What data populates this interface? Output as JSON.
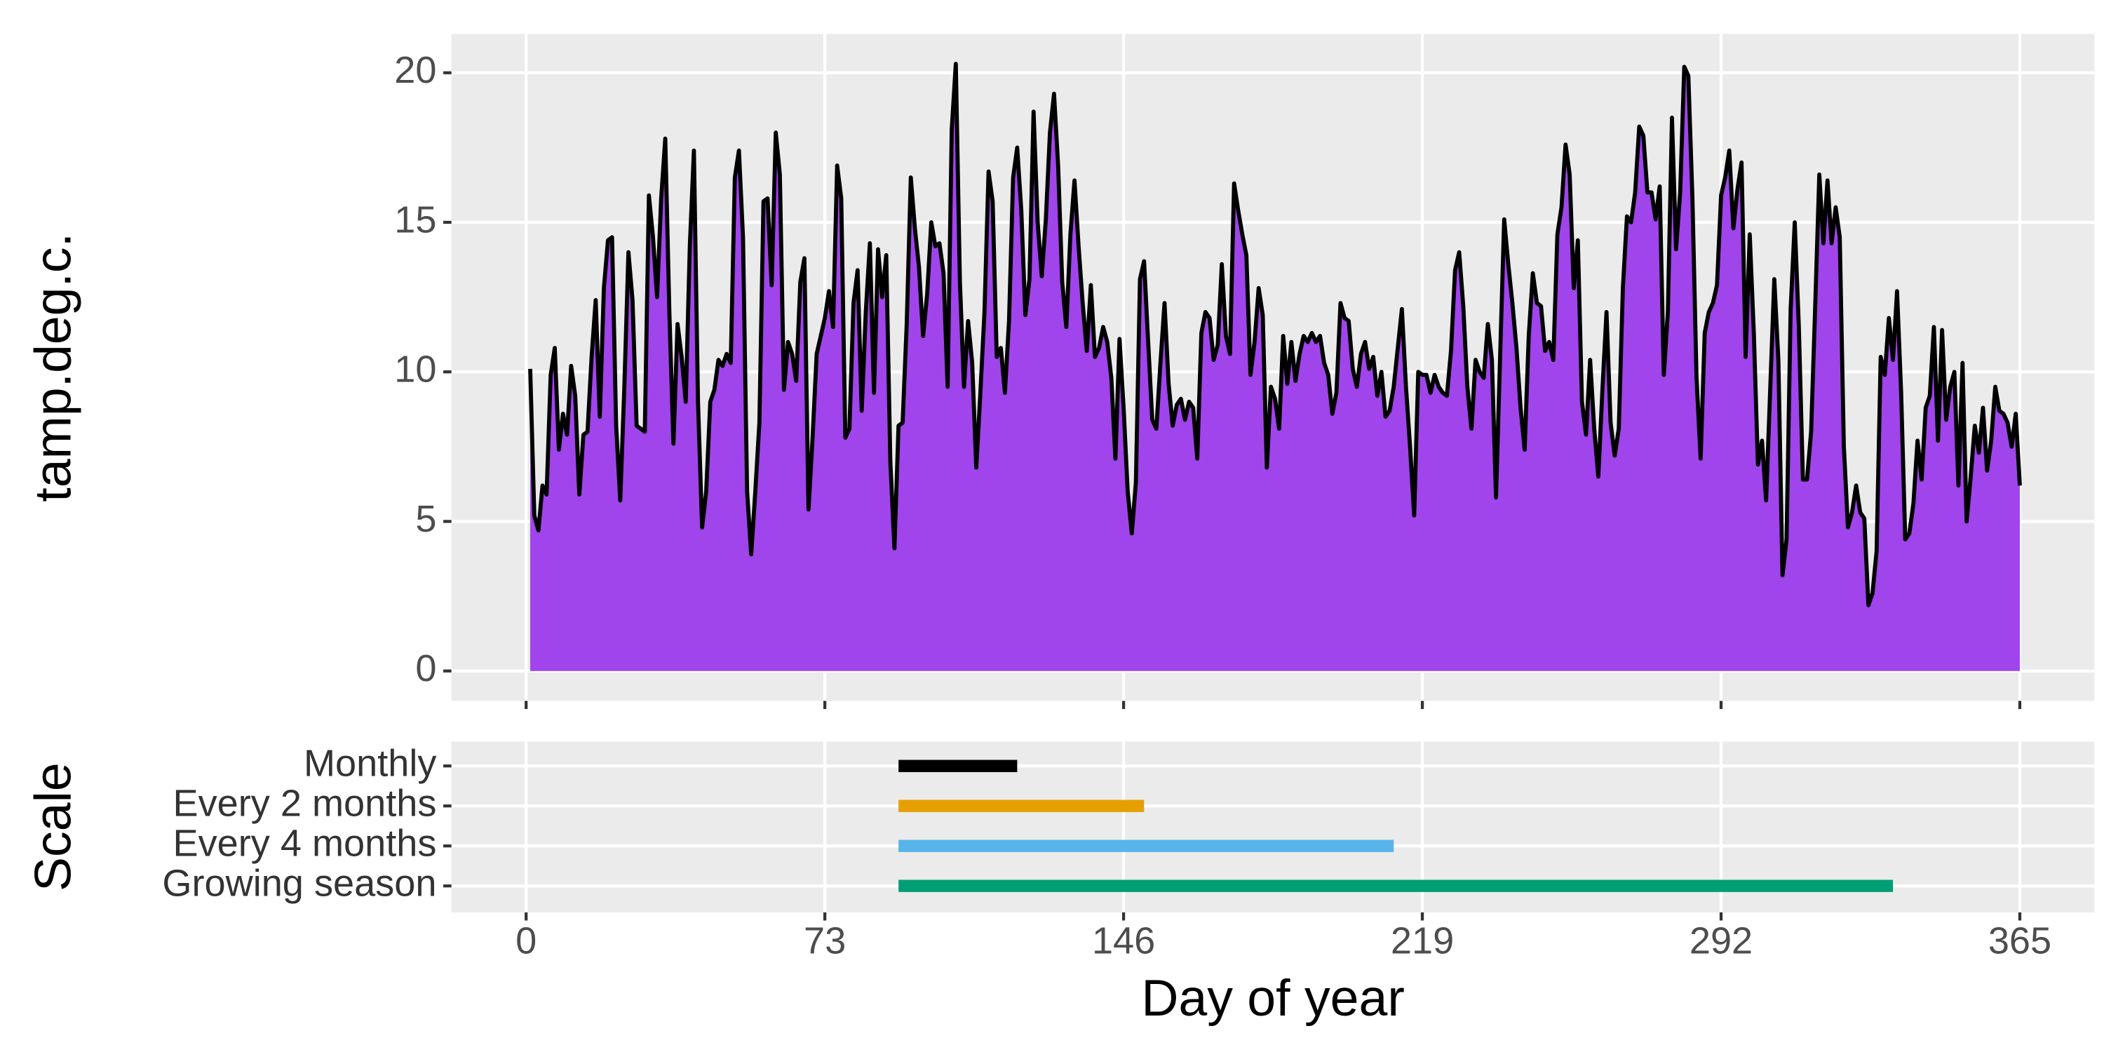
{
  "chart_data": [
    {
      "type": "area",
      "ylabel": "tamp.deg.c.",
      "line_color": "#000000",
      "fill_color": "#a044eb",
      "xlim": [
        -18.25,
        383.25
      ],
      "xticks": [
        0,
        73,
        146,
        219,
        292,
        365
      ],
      "ylim": [
        -1.0,
        21.3
      ],
      "yticks": [
        0,
        5,
        10,
        15,
        20
      ],
      "grid": true,
      "x": [
        1,
        2,
        3,
        4,
        5,
        6,
        7,
        8,
        9,
        10,
        11,
        12,
        13,
        14,
        15,
        16,
        17,
        18,
        19,
        20,
        21,
        22,
        23,
        24,
        25,
        26,
        27,
        28,
        29,
        30,
        31,
        32,
        33,
        34,
        35,
        36,
        37,
        38,
        39,
        40,
        41,
        42,
        43,
        44,
        45,
        46,
        47,
        48,
        49,
        50,
        51,
        52,
        53,
        54,
        55,
        56,
        57,
        58,
        59,
        60,
        61,
        62,
        63,
        64,
        65,
        66,
        67,
        68,
        69,
        70,
        71,
        72,
        73,
        74,
        75,
        76,
        77,
        78,
        79,
        80,
        81,
        82,
        83,
        84,
        85,
        86,
        87,
        88,
        89,
        90,
        91,
        92,
        93,
        94,
        95,
        96,
        97,
        98,
        99,
        100,
        101,
        102,
        103,
        104,
        105,
        106,
        107,
        108,
        109,
        110,
        111,
        112,
        113,
        114,
        115,
        116,
        117,
        118,
        119,
        120,
        121,
        122,
        123,
        124,
        125,
        126,
        127,
        128,
        129,
        130,
        131,
        132,
        133,
        134,
        135,
        136,
        137,
        138,
        139,
        140,
        141,
        142,
        143,
        144,
        145,
        146,
        147,
        148,
        149,
        150,
        151,
        152,
        153,
        154,
        155,
        156,
        157,
        158,
        159,
        160,
        161,
        162,
        163,
        164,
        165,
        166,
        167,
        168,
        169,
        170,
        171,
        172,
        173,
        174,
        175,
        176,
        177,
        178,
        179,
        180,
        181,
        182,
        183,
        184,
        185,
        186,
        187,
        188,
        189,
        190,
        191,
        192,
        193,
        194,
        195,
        196,
        197,
        198,
        199,
        200,
        201,
        202,
        203,
        204,
        205,
        206,
        207,
        208,
        209,
        210,
        211,
        212,
        213,
        214,
        215,
        216,
        217,
        218,
        219,
        220,
        221,
        222,
        223,
        224,
        225,
        226,
        227,
        228,
        229,
        230,
        231,
        232,
        233,
        234,
        235,
        236,
        237,
        238,
        239,
        240,
        241,
        242,
        243,
        244,
        245,
        246,
        247,
        248,
        249,
        250,
        251,
        252,
        253,
        254,
        255,
        256,
        257,
        258,
        259,
        260,
        261,
        262,
        263,
        264,
        265,
        266,
        267,
        268,
        269,
        270,
        271,
        272,
        273,
        274,
        275,
        276,
        277,
        278,
        279,
        280,
        281,
        282,
        283,
        284,
        285,
        286,
        287,
        288,
        289,
        290,
        291,
        292,
        293,
        294,
        295,
        296,
        297,
        298,
        299,
        300,
        301,
        302,
        303,
        304,
        305,
        306,
        307,
        308,
        309,
        310,
        311,
        312,
        313,
        314,
        315,
        316,
        317,
        318,
        319,
        320,
        321,
        322,
        323,
        324,
        325,
        326,
        327,
        328,
        329,
        330,
        331,
        332,
        333,
        334,
        335,
        336,
        337,
        338,
        339,
        340,
        341,
        342,
        343,
        344,
        345,
        346,
        347,
        348,
        349,
        350,
        351,
        352,
        353,
        354,
        355,
        356,
        357,
        358,
        359,
        360,
        361,
        362,
        363,
        364,
        365
      ],
      "values": [
        10.1,
        5.2,
        4.7,
        6.2,
        5.9,
        9.9,
        10.8,
        7.4,
        8.6,
        7.9,
        10.2,
        9.2,
        5.9,
        7.9,
        8.0,
        10.5,
        12.4,
        8.5,
        12.8,
        14.4,
        14.5,
        8.2,
        5.7,
        9.5,
        14.0,
        12.4,
        8.2,
        8.1,
        8.0,
        15.9,
        14.5,
        12.5,
        15.8,
        17.8,
        12.0,
        7.6,
        11.6,
        10.5,
        9.0,
        14.2,
        17.4,
        9.0,
        4.8,
        6.0,
        9.0,
        9.4,
        10.4,
        10.2,
        10.6,
        10.3,
        16.5,
        17.4,
        14.5,
        6.0,
        3.9,
        6.0,
        8.3,
        15.7,
        15.8,
        12.9,
        18.0,
        16.6,
        9.4,
        11.0,
        10.6,
        9.7,
        13.0,
        13.8,
        5.4,
        7.8,
        10.6,
        11.2,
        11.8,
        12.7,
        11.5,
        16.9,
        15.8,
        7.8,
        8.1,
        12.3,
        13.4,
        8.7,
        12.0,
        14.3,
        9.3,
        14.1,
        12.5,
        13.9,
        7.0,
        4.1,
        8.2,
        8.3,
        11.6,
        16.5,
        14.8,
        13.5,
        11.2,
        12.6,
        15.0,
        14.2,
        14.3,
        13.3,
        9.5,
        18.1,
        20.3,
        13.0,
        9.5,
        11.7,
        10.3,
        6.8,
        9.3,
        12.0,
        16.7,
        15.7,
        10.5,
        10.8,
        9.3,
        11.7,
        16.5,
        17.5,
        15.4,
        11.9,
        13.1,
        18.7,
        15.0,
        13.2,
        15.1,
        18.0,
        19.3,
        16.9,
        13.0,
        11.5,
        14.6,
        16.4,
        14.2,
        12.3,
        10.7,
        12.9,
        10.5,
        10.8,
        11.5,
        11.0,
        9.8,
        7.1,
        11.1,
        8.8,
        6.0,
        4.6,
        6.3,
        13.1,
        13.7,
        11.0,
        8.4,
        8.1,
        10.3,
        12.3,
        9.6,
        8.2,
        8.9,
        9.1,
        8.4,
        9.0,
        8.8,
        7.1,
        11.3,
        12.0,
        11.8,
        10.4,
        10.9,
        13.6,
        11.2,
        10.6,
        16.3,
        15.4,
        14.6,
        13.9,
        9.9,
        11.0,
        12.8,
        11.9,
        6.8,
        9.5,
        9.1,
        8.1,
        11.2,
        9.6,
        11.0,
        9.7,
        10.6,
        11.2,
        11.0,
        11.3,
        11.0,
        11.2,
        10.3,
        9.9,
        8.6,
        9.3,
        12.3,
        11.8,
        11.7,
        10.1,
        9.5,
        10.6,
        11.0,
        10.1,
        10.5,
        9.2,
        10.0,
        8.5,
        8.7,
        9.5,
        10.8,
        12.1,
        9.5,
        7.5,
        5.2,
        10.0,
        9.9,
        9.9,
        9.3,
        9.9,
        9.5,
        9.3,
        9.2,
        10.7,
        13.4,
        14.0,
        12.2,
        9.5,
        8.1,
        10.4,
        10.0,
        9.8,
        11.6,
        10.4,
        5.8,
        10.5,
        15.1,
        13.6,
        12.3,
        10.8,
        8.8,
        7.4,
        11.2,
        13.3,
        12.3,
        12.2,
        10.7,
        11.0,
        10.4,
        14.6,
        15.5,
        17.6,
        16.6,
        12.8,
        14.4,
        9.0,
        7.9,
        10.4,
        8.1,
        6.5,
        9.4,
        12.0,
        8.3,
        7.2,
        8.1,
        12.8,
        15.2,
        15.0,
        16.0,
        18.2,
        17.9,
        16.0,
        16.0,
        15.1,
        16.2,
        9.9,
        12.0,
        18.5,
        14.1,
        16.0,
        20.2,
        19.9,
        15.8,
        9.8,
        7.1,
        11.3,
        12.0,
        12.3,
        12.9,
        15.9,
        16.5,
        17.4,
        14.8,
        16.1,
        17.0,
        10.5,
        14.6,
        11.3,
        6.9,
        7.7,
        5.7,
        9.4,
        13.1,
        10.4,
        3.2,
        4.4,
        12.1,
        15.0,
        11.5,
        6.4,
        6.4,
        8.0,
        12.2,
        16.6,
        14.3,
        16.4,
        14.3,
        15.5,
        14.5,
        7.5,
        4.8,
        5.3,
        6.2,
        5.3,
        5.1,
        2.2,
        2.6,
        4.0,
        10.5,
        9.9,
        11.8,
        10.4,
        12.7,
        9.3,
        4.4,
        4.6,
        5.6,
        7.7,
        6.4,
        8.8,
        9.2,
        11.5,
        7.7,
        11.4,
        8.4,
        9.5,
        10.0,
        6.2,
        10.3,
        5.0,
        6.5,
        8.2,
        7.3,
        8.8,
        6.7,
        7.7,
        9.5,
        8.7,
        8.6,
        8.3,
        7.5,
        8.6,
        6.2
      ]
    },
    {
      "type": "range",
      "xlabel": "Day of year",
      "ylabel": "Scale",
      "xlim": [
        -18.25,
        383.25
      ],
      "xticks": [
        0,
        73,
        146,
        219,
        292,
        365
      ],
      "grid": true,
      "categories": [
        "Monthly",
        "Every 2 months",
        "Every 4 months",
        "Growing season"
      ],
      "start": [
        91,
        91,
        91,
        91
      ],
      "end": [
        120,
        151,
        212,
        334
      ],
      "colors": [
        "#000000",
        "#e69f00",
        "#56b4e9",
        "#009e73"
      ]
    }
  ]
}
